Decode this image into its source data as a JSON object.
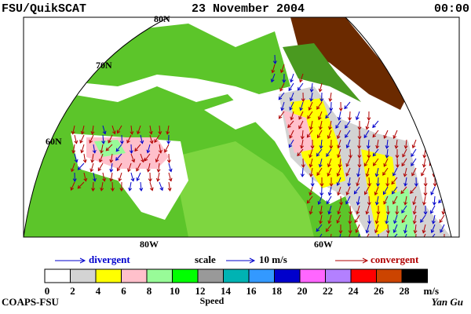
{
  "header": {
    "left": "FSU/QuikSCAT",
    "center": "23 November 2004",
    "right": "00:00"
  },
  "map": {
    "lat_labels": [
      "80N",
      "70N",
      "60N"
    ],
    "lon_labels": [
      "80W",
      "60W"
    ]
  },
  "legend": {
    "divergent": "divergent",
    "scale": "scale",
    "scale_value": "10 m/s",
    "convergent": "convergent"
  },
  "colorbar": {
    "colors": [
      "#ffffff",
      "#d3d3d3",
      "#ffff00",
      "#ffc0cb",
      "#98fb98",
      "#00ff00",
      "#999999",
      "#00b3b3",
      "#3399ff",
      "#0000cc",
      "#ff66ff",
      "#b380ff",
      "#ff0000",
      "#cc4400",
      "#000000"
    ],
    "ticks": [
      "0",
      "2",
      "4",
      "6",
      "8",
      "10",
      "12",
      "14",
      "16",
      "18",
      "20",
      "22",
      "24",
      "26",
      "28"
    ],
    "unit": "m/s",
    "label": "Speed"
  },
  "footer": {
    "left": "COAPS-FSU",
    "right": "Yan Gu"
  }
}
